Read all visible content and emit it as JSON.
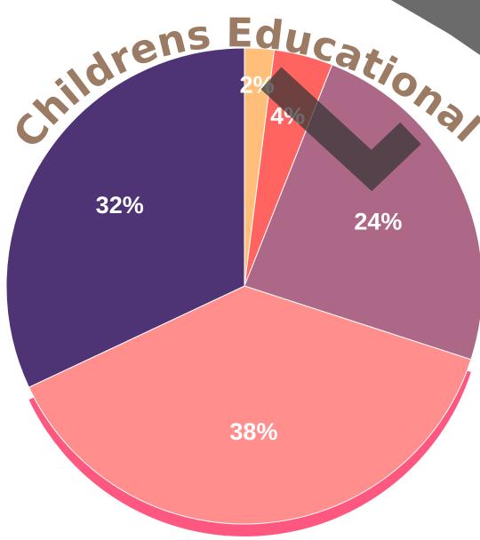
{
  "chart_data": {
    "type": "pie",
    "title": "",
    "slices": [
      {
        "label": "2%",
        "value": 2,
        "color": "#ffbf7a"
      },
      {
        "label": "4%",
        "value": 4,
        "color": "#ff6460"
      },
      {
        "label": "24%",
        "value": 24,
        "color": "#ad6887"
      },
      {
        "label": "38%",
        "value": 38,
        "color": "#ff8e8c"
      },
      {
        "label": "32%",
        "value": 32,
        "color": "#4e3475"
      }
    ],
    "start_angle_deg": 0,
    "direction": "clockwise",
    "exploded_shadow_color": "#ff5880"
  },
  "watermark": {
    "text": "Childrens Educational Zone",
    "logo": "stylized-letter-mark",
    "text_color": "#9b7b64",
    "mark_color": "#3b3b3b"
  }
}
